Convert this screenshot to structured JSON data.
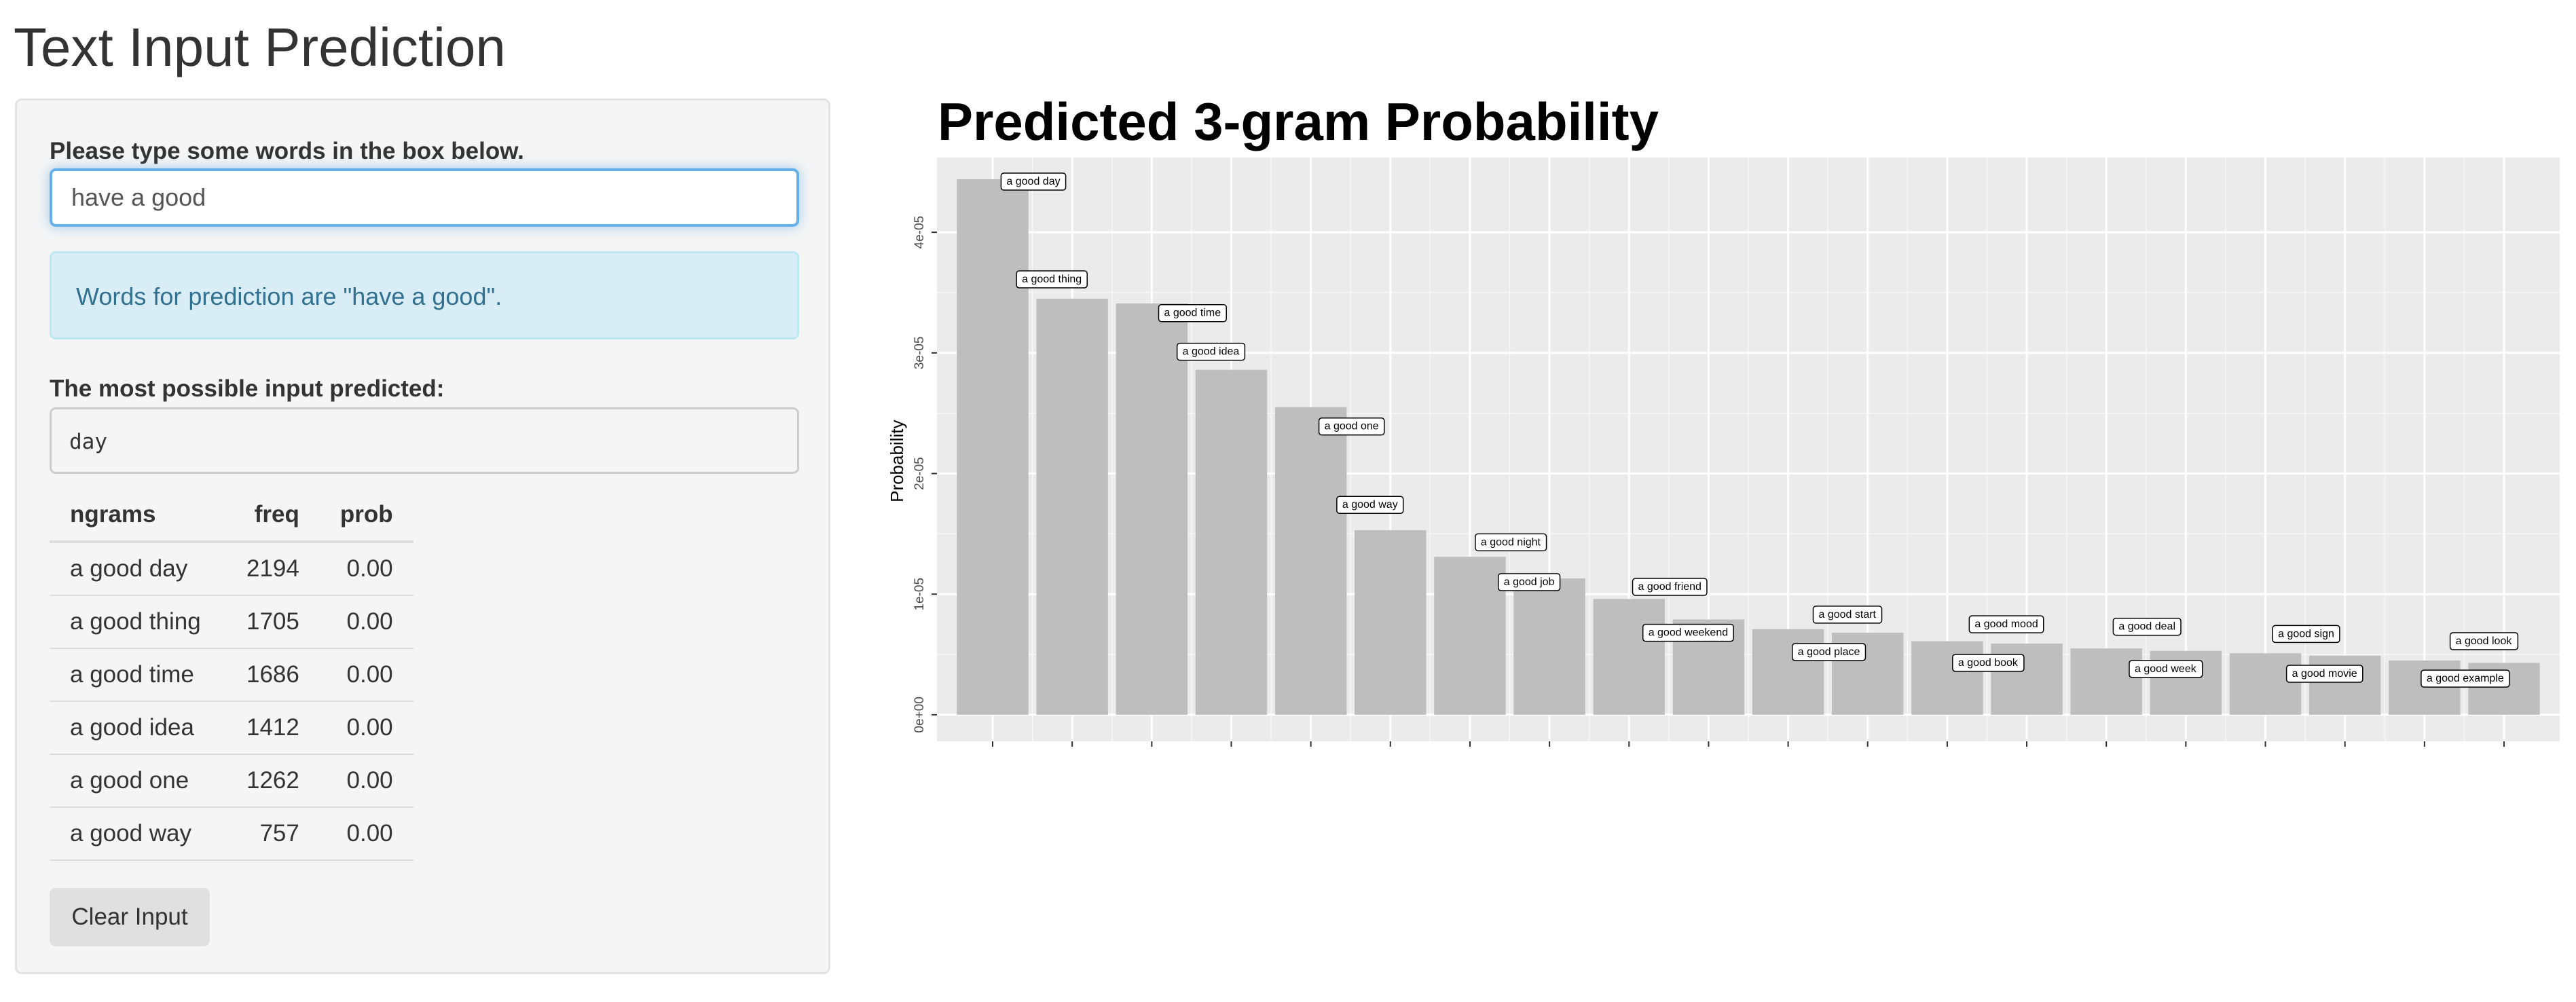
{
  "app": {
    "title": "Text Input Prediction"
  },
  "sidebar": {
    "input_label": "Please type some words in the box below.",
    "input_value": "have a good",
    "info_text": "Words for prediction are \"have a good\".",
    "predicted_label": "The most possible input predicted:",
    "predicted_value": "day",
    "table": {
      "headers": [
        "ngrams",
        "freq",
        "prob"
      ],
      "rows": [
        [
          "a good day",
          "2194",
          "0.00"
        ],
        [
          "a good thing",
          "1705",
          "0.00"
        ],
        [
          "a good time",
          "1686",
          "0.00"
        ],
        [
          "a good idea",
          "1412",
          "0.00"
        ],
        [
          "a good one",
          "1262",
          "0.00"
        ],
        [
          "a good way",
          "757",
          "0.00"
        ]
      ]
    },
    "clear_button": "Clear Input"
  },
  "chart_data": {
    "type": "bar",
    "title": "Predicted 3-gram Probability",
    "xlabel": "",
    "ylabel": "Probability",
    "ylim": [
      -2.2e-06,
      4.62e-05
    ],
    "yticks": [
      0,
      1e-05,
      2e-05,
      3e-05,
      4e-05
    ],
    "ytick_labels": [
      "0e+00",
      "1e-05",
      "2e-05",
      "3e-05",
      "4e-05"
    ],
    "grid": true,
    "background": "#ebebeb",
    "bar_color": "#bebebe",
    "categories": [
      "a good day",
      "a good thing",
      "a good time",
      "a good idea",
      "a good one",
      "a good way",
      "a good night",
      "a good job",
      "a good friend",
      "a good weekend",
      "a good place",
      "a good start",
      "a good book",
      "a good mood",
      "a good deal",
      "a good week",
      "a good sign",
      "a good movie",
      "a good example",
      "a good look"
    ],
    "values": [
      4.44e-05,
      3.45e-05,
      3.41e-05,
      2.86e-05,
      2.55e-05,
      1.53e-05,
      1.31e-05,
      1.13e-05,
      9.6e-06,
      7.9e-06,
      7.1e-06,
      6.8e-06,
      6.1e-06,
      5.9e-06,
      5.5e-06,
      5.3e-06,
      5.1e-06,
      4.9e-06,
      4.5e-06,
      4.3e-06
    ],
    "label_values": [
      4.42e-05,
      3.61e-05,
      3.33e-05,
      3.01e-05,
      2.39e-05,
      1.74e-05,
      1.43e-05,
      1.1e-05,
      1.06e-05,
      6.8e-06,
      5.2e-06,
      8.3e-06,
      4.3e-06,
      7.5e-06,
      7.3e-06,
      3.8e-06,
      6.7e-06,
      3.4e-06,
      3e-06,
      6.1e-06
    ]
  }
}
